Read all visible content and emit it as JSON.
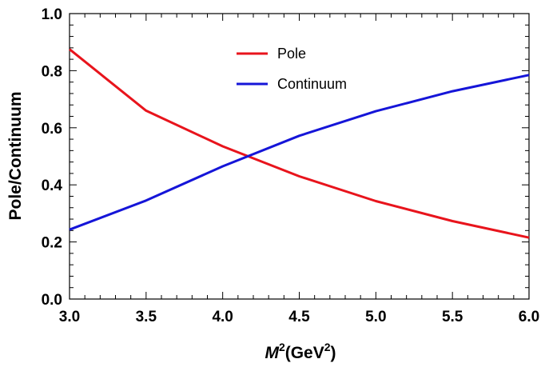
{
  "chart_data": {
    "type": "line",
    "xlabel_main": "M",
    "xlabel_sup1": "2",
    "xlabel_mid": "(GeV",
    "xlabel_sup2": "2",
    "xlabel_end": ")",
    "ylabel": "Pole/Continuum",
    "xlim": [
      3.0,
      6.0
    ],
    "ylim": [
      0.0,
      1.0
    ],
    "x_ticks": [
      "3.0",
      "3.5",
      "4.0",
      "4.5",
      "5.0",
      "5.5",
      "6.0"
    ],
    "y_ticks": [
      "0.0",
      "0.2",
      "0.4",
      "0.6",
      "0.8",
      "1.0"
    ],
    "legend_position": "top-center",
    "series": [
      {
        "name": "Pole",
        "color": "#e8141c",
        "x": [
          3.0,
          3.5,
          4.0,
          4.5,
          5.0,
          5.5,
          6.0
        ],
        "values": [
          0.875,
          0.66,
          0.535,
          0.43,
          0.343,
          0.273,
          0.215
        ]
      },
      {
        "name": "Continuum",
        "color": "#1515d8",
        "x": [
          3.0,
          3.5,
          4.0,
          4.5,
          5.0,
          5.5,
          6.0
        ],
        "values": [
          0.243,
          0.345,
          0.465,
          0.572,
          0.658,
          0.728,
          0.785
        ]
      }
    ]
  }
}
